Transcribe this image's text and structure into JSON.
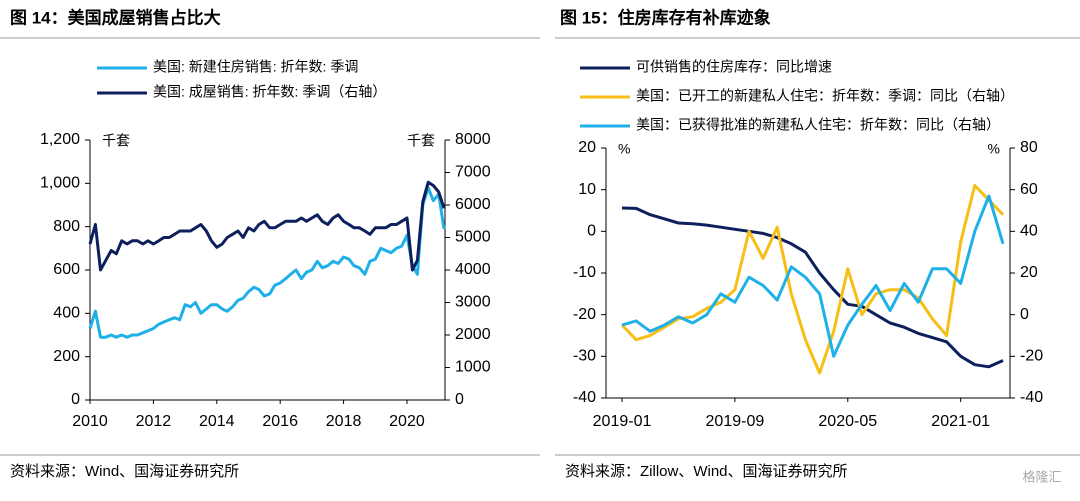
{
  "chart_data": [
    {
      "type": "line",
      "title": "图 14：美国成屋销售占比大",
      "y_unit": "千套",
      "y2_unit": "千套",
      "x": [
        2010.0,
        2010.17,
        2010.33,
        2010.5,
        2010.67,
        2010.83,
        2011.0,
        2011.17,
        2011.33,
        2011.5,
        2011.67,
        2011.83,
        2012.0,
        2012.17,
        2012.33,
        2012.5,
        2012.67,
        2012.83,
        2013.0,
        2013.17,
        2013.33,
        2013.5,
        2013.67,
        2013.83,
        2014.0,
        2014.17,
        2014.33,
        2014.5,
        2014.67,
        2014.83,
        2015.0,
        2015.17,
        2015.33,
        2015.5,
        2015.67,
        2015.83,
        2016.0,
        2016.17,
        2016.33,
        2016.5,
        2016.67,
        2016.83,
        2017.0,
        2017.17,
        2017.33,
        2017.5,
        2017.67,
        2017.83,
        2018.0,
        2018.17,
        2018.33,
        2018.5,
        2018.67,
        2018.83,
        2019.0,
        2019.17,
        2019.33,
        2019.5,
        2019.67,
        2019.83,
        2020.0,
        2020.17,
        2020.33,
        2020.5,
        2020.67,
        2020.83,
        2021.0,
        2021.17
      ],
      "xlim": [
        2010,
        2021.2
      ],
      "xticks": [
        2010,
        2012,
        2014,
        2016,
        2018,
        2020
      ],
      "ylim": [
        0,
        1200
      ],
      "yticks": [
        0,
        200,
        400,
        600,
        800,
        {
          "value": 1000,
          "label": "1,000"
        },
        {
          "value": 1200,
          "label": "1,200"
        }
      ],
      "y2lim": [
        0,
        8000
      ],
      "y2ticks": [
        0,
        1000,
        2000,
        3000,
        4000,
        5000,
        6000,
        7000,
        8000
      ],
      "series": [
        {
          "name": "美国: 新建住房销售: 折年数: 季调",
          "color": "#1fb0e8",
          "axis": "y",
          "values": [
            330,
            410,
            290,
            290,
            300,
            290,
            300,
            290,
            300,
            300,
            310,
            320,
            330,
            350,
            360,
            370,
            380,
            370,
            440,
            430,
            450,
            400,
            420,
            440,
            440,
            420,
            410,
            430,
            460,
            470,
            500,
            520,
            510,
            480,
            490,
            530,
            540,
            560,
            580,
            600,
            560,
            590,
            600,
            640,
            610,
            620,
            640,
            630,
            660,
            650,
            620,
            610,
            580,
            640,
            650,
            700,
            690,
            680,
            700,
            710,
            760,
            620,
            580,
            900,
            980,
            920,
            950,
            790
          ]
        },
        {
          "name": "美国: 成屋销售: 折年数: 季调（右轴）",
          "color": "#0d1f5c",
          "axis": "y2",
          "values": [
            4800,
            5400,
            4000,
            4300,
            4600,
            4500,
            4900,
            4800,
            4900,
            4900,
            4800,
            4900,
            4800,
            4900,
            5000,
            5000,
            5100,
            5200,
            5200,
            5200,
            5300,
            5400,
            5200,
            4900,
            4700,
            4800,
            5000,
            5100,
            5200,
            5000,
            5300,
            5200,
            5400,
            5500,
            5300,
            5300,
            5400,
            5500,
            5500,
            5500,
            5600,
            5500,
            5600,
            5700,
            5500,
            5400,
            5600,
            5700,
            5500,
            5400,
            5300,
            5300,
            5200,
            5100,
            5300,
            5300,
            5300,
            5400,
            5400,
            5500,
            5600,
            4000,
            4300,
            6100,
            6700,
            6600,
            6400,
            5900
          ]
        }
      ],
      "source": "资料来源：Wind、国海证券研究所"
    },
    {
      "type": "line",
      "title": "图 15：住房库存有补库迹象",
      "y_unit": "%",
      "y2_unit": "%",
      "categories": [
        "2019-01",
        null,
        null,
        null,
        null,
        null,
        null,
        null,
        "2019-09",
        null,
        null,
        null,
        null,
        null,
        null,
        null,
        "2020-05",
        null,
        null,
        null,
        null,
        null,
        null,
        null,
        "2021-01",
        null,
        null,
        null
      ],
      "ylim": [
        -40,
        20
      ],
      "yticks": [
        -40,
        -30,
        -20,
        -10,
        0,
        10,
        20
      ],
      "y2lim": [
        -40,
        80
      ],
      "y2ticks": [
        -40,
        -20,
        0,
        20,
        40,
        60,
        80
      ],
      "series": [
        {
          "name": "可供销售的住房库存：同比增速",
          "color": "#0d1f5c",
          "axis": "y",
          "values": [
            5.6,
            5.5,
            4,
            3,
            2,
            1.8,
            1.5,
            1,
            0.5,
            0,
            -0.5,
            -1.5,
            -3,
            -5,
            -10,
            -14,
            -17.5,
            -18,
            -20,
            -22,
            -23,
            -24.5,
            -25.5,
            -26.5,
            -30,
            -32,
            -32.5,
            -31
          ]
        },
        {
          "name": "美国：已开工的新建私人住宅：折年数：季调：同比（右轴）",
          "color": "#f7be16",
          "axis": "y2",
          "values": [
            -5,
            -12,
            -10,
            -6,
            -2,
            -1,
            3,
            6,
            12,
            40,
            27,
            42,
            10,
            -12,
            -28,
            -8,
            22,
            0,
            10,
            12,
            12,
            8,
            -2,
            -10,
            35,
            62,
            55,
            48
          ]
        },
        {
          "name": "美国：已获得批准的新建私人住宅：折年数：同比（右轴）",
          "color": "#1fb0e8",
          "axis": "y2",
          "values": [
            -5,
            -3,
            -8,
            -5,
            -1,
            -4,
            0,
            10,
            6,
            18,
            14,
            7,
            23,
            18,
            10,
            -20,
            -5,
            5,
            14,
            2,
            15,
            6,
            22,
            22,
            15,
            40,
            57,
            34
          ]
        }
      ],
      "source": "资料来源：Zillow、Wind、国海证券研究所"
    }
  ],
  "watermark": "格隆汇"
}
